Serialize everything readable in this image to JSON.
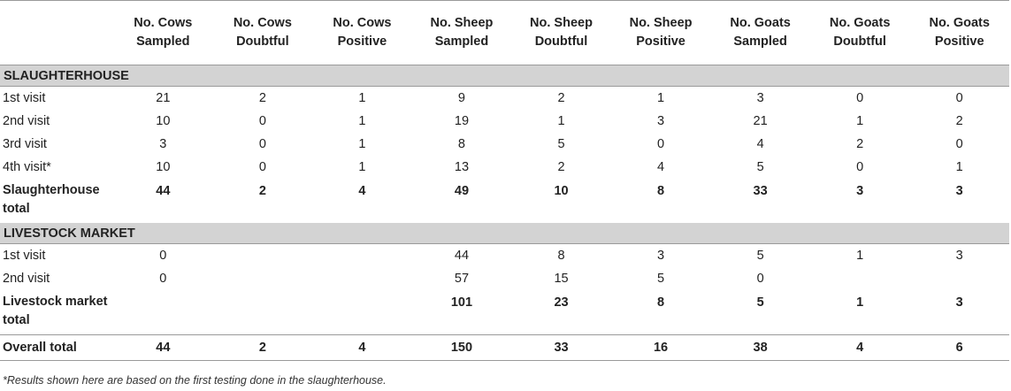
{
  "table": {
    "headers": [
      "",
      "No. Cows Sampled",
      "No. Cows Doubtful",
      "No. Cows Positive",
      "No. Sheep Sampled",
      "No. Sheep Doubtful",
      "No. Sheep Positive",
      "No. Goats Sampled",
      "No. Goats Doubtful",
      "No. Goats Positive"
    ],
    "sections": [
      {
        "title": "SLAUGHTERHOUSE",
        "rows": [
          [
            "1st visit",
            "21",
            "2",
            "1",
            "9",
            "2",
            "1",
            "3",
            "0",
            "0"
          ],
          [
            "2nd visit",
            "10",
            "0",
            "1",
            "19",
            "1",
            "3",
            "21",
            "1",
            "2"
          ],
          [
            "3rd visit",
            "3",
            "0",
            "1",
            "8",
            "5",
            "0",
            "4",
            "2",
            "0"
          ],
          [
            "4th visit*",
            "10",
            "0",
            "1",
            "13",
            "2",
            "4",
            "5",
            "0",
            "1"
          ]
        ],
        "total": [
          "Slaughterhouse total",
          "44",
          "2",
          "4",
          "49",
          "10",
          "8",
          "33",
          "3",
          "3"
        ]
      },
      {
        "title": "LIVESTOCK MARKET",
        "rows": [
          [
            "1st visit",
            "0",
            "",
            "",
            "44",
            "8",
            "3",
            "5",
            "1",
            "3"
          ],
          [
            "2nd visit",
            "0",
            "",
            "",
            "57",
            "15",
            "5",
            "0",
            "",
            ""
          ]
        ],
        "total": [
          "Livestock market total",
          "",
          "",
          "",
          "101",
          "23",
          "8",
          "5",
          "1",
          "3"
        ]
      }
    ],
    "overall": [
      "Overall total",
      "44",
      "2",
      "4",
      "150",
      "33",
      "16",
      "38",
      "4",
      "6"
    ]
  },
  "footnote": "*Results shown here are based on the first testing done in the slaughterhouse."
}
